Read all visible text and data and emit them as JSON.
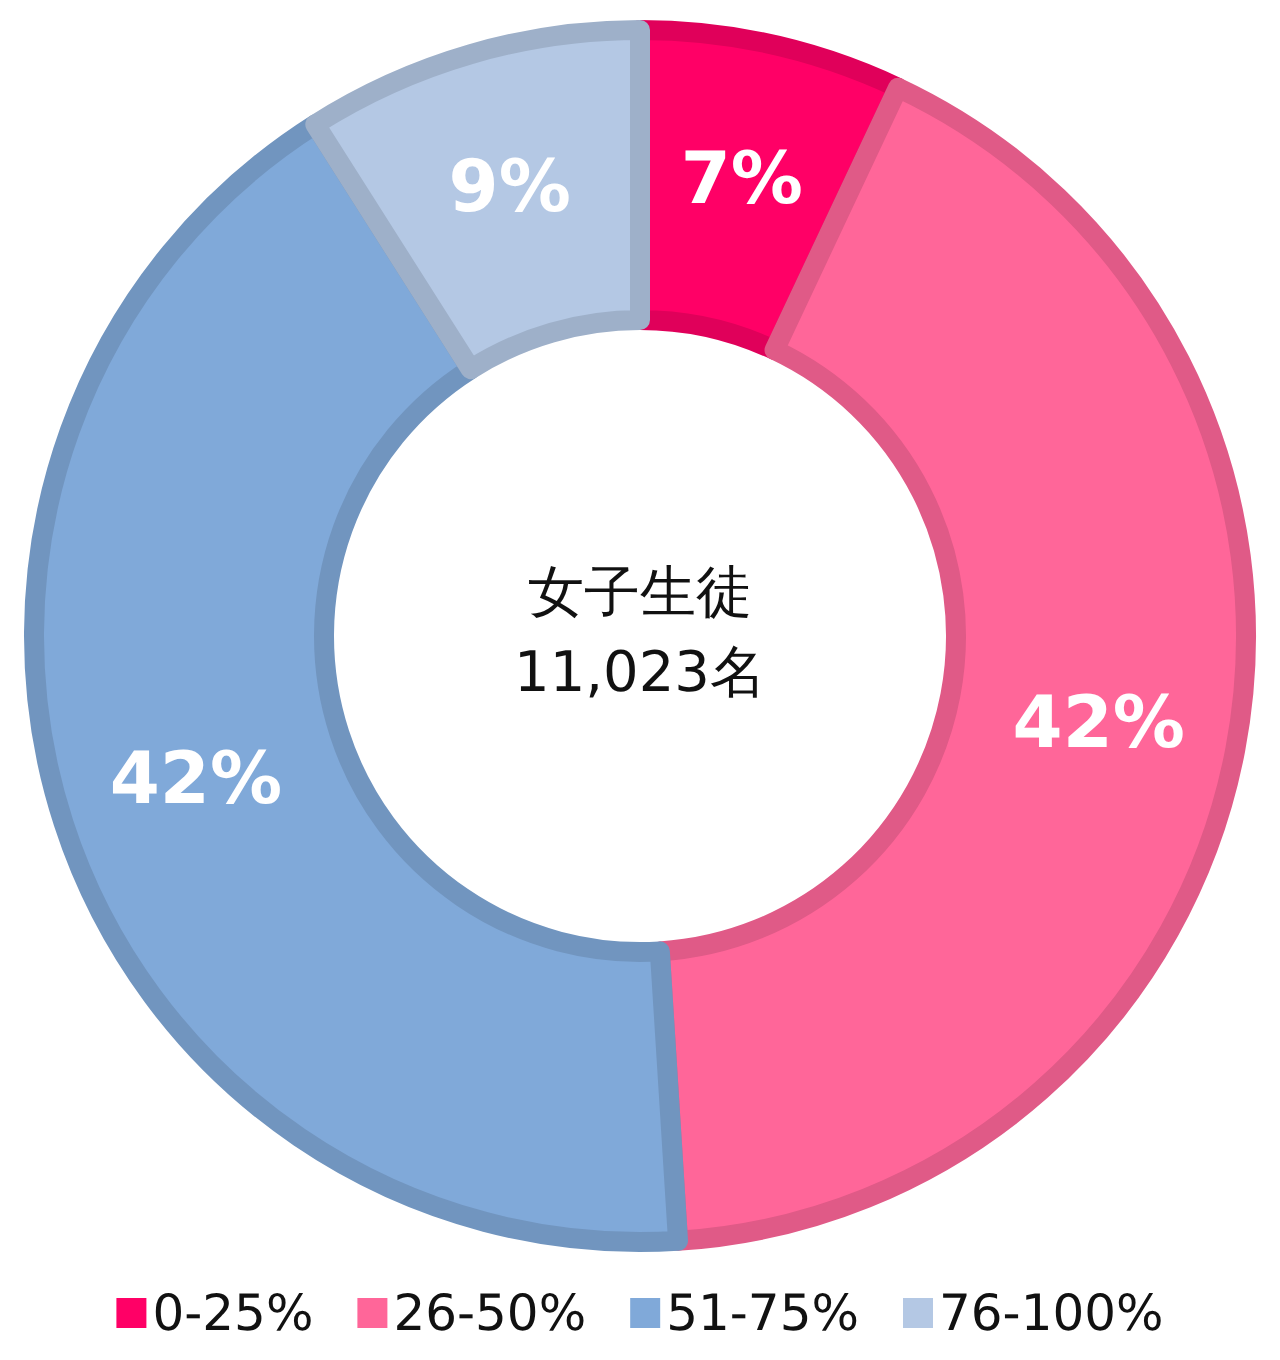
{
  "chart_data": {
    "type": "donut",
    "categories": [
      "0-25%",
      "26-50%",
      "51-75%",
      "76-100%"
    ],
    "values": [
      7,
      42,
      42,
      9
    ],
    "colors": [
      "#ff0066",
      "#ff6699",
      "#80a9d9",
      "#b4c8e4"
    ],
    "value_labels": [
      "7%",
      "42%",
      "42%",
      "9%"
    ],
    "annotations": [
      "女子生徒",
      "11,023名"
    ],
    "legend": "bottom"
  }
}
